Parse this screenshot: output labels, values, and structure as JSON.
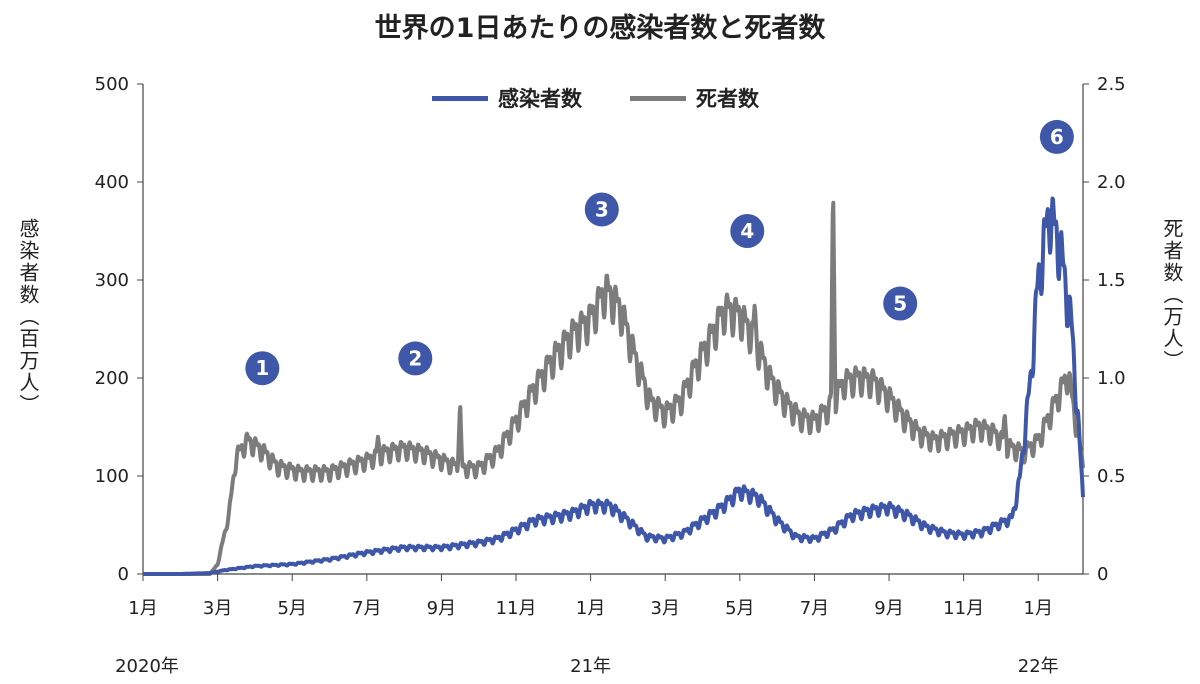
{
  "chart_data": {
    "type": "line",
    "title": "世界の1日あたりの感染者数と死者数",
    "y_left": {
      "label": "感染者数（百万人）",
      "min": 0,
      "max": 500,
      "ticks": [
        "0",
        "100",
        "200",
        "300",
        "400",
        "500"
      ]
    },
    "y_right": {
      "label": "死者数（万人）",
      "min": 0,
      "max": 2.5,
      "ticks": [
        "0",
        "0.5",
        "1.0",
        "1.5",
        "2.0",
        "2.5"
      ]
    },
    "x": {
      "min": 0,
      "max": 25.2,
      "ticks": [
        {
          "m": 0,
          "label": "1月"
        },
        {
          "m": 2,
          "label": "3月"
        },
        {
          "m": 4,
          "label": "5月"
        },
        {
          "m": 6,
          "label": "7月"
        },
        {
          "m": 8,
          "label": "9月"
        },
        {
          "m": 10,
          "label": "11月"
        },
        {
          "m": 12,
          "label": "1月"
        },
        {
          "m": 14,
          "label": "3月"
        },
        {
          "m": 16,
          "label": "5月"
        },
        {
          "m": 18,
          "label": "7月"
        },
        {
          "m": 20,
          "label": "9月"
        },
        {
          "m": 22,
          "label": "11月"
        },
        {
          "m": 24,
          "label": "1月"
        }
      ],
      "years": [
        {
          "m": 0,
          "label": "2020年"
        },
        {
          "m": 12,
          "label": "21年"
        },
        {
          "m": 24,
          "label": "22年"
        }
      ]
    },
    "legend_position": "top-center",
    "series": [
      {
        "name": "感染者数",
        "axis": "left",
        "color": "#3f57a8",
        "points": [
          [
            0,
            0
          ],
          [
            1,
            0
          ],
          [
            1.8,
            1
          ],
          [
            2.2,
            4
          ],
          [
            3,
            8
          ],
          [
            4,
            10
          ],
          [
            5,
            15
          ],
          [
            6,
            22
          ],
          [
            7,
            27
          ],
          [
            8,
            27
          ],
          [
            9,
            32
          ],
          [
            9.5,
            36
          ],
          [
            10,
            45
          ],
          [
            10.5,
            55
          ],
          [
            11,
            58
          ],
          [
            11.5,
            62
          ],
          [
            12,
            70
          ],
          [
            12.5,
            70
          ],
          [
            13,
            55
          ],
          [
            13.5,
            38
          ],
          [
            14,
            36
          ],
          [
            14.5,
            42
          ],
          [
            15,
            55
          ],
          [
            15.5,
            68
          ],
          [
            16,
            85
          ],
          [
            16.5,
            78
          ],
          [
            17,
            55
          ],
          [
            17.5,
            38
          ],
          [
            18,
            36
          ],
          [
            18.5,
            45
          ],
          [
            19,
            60
          ],
          [
            19.5,
            65
          ],
          [
            20,
            68
          ],
          [
            20.5,
            60
          ],
          [
            21,
            48
          ],
          [
            21.5,
            42
          ],
          [
            22,
            40
          ],
          [
            22.5,
            43
          ],
          [
            23,
            52
          ],
          [
            23.3,
            57
          ],
          [
            23.5,
            95
          ],
          [
            23.8,
            200
          ],
          [
            24,
            300
          ],
          [
            24.3,
            370
          ],
          [
            24.6,
            330
          ],
          [
            24.9,
            250
          ],
          [
            25.2,
            80
          ]
        ]
      },
      {
        "name": "死者数",
        "axis": "right",
        "color": "#7c7c7c",
        "points": [
          [
            0,
            0
          ],
          [
            1,
            0
          ],
          [
            1.8,
            0
          ],
          [
            2,
            0.05
          ],
          [
            2.3,
            0.3
          ],
          [
            2.5,
            0.6
          ],
          [
            2.8,
            0.68
          ],
          [
            3.2,
            0.63
          ],
          [
            3.6,
            0.55
          ],
          [
            4.2,
            0.52
          ],
          [
            5,
            0.52
          ],
          [
            5.5,
            0.55
          ],
          [
            6,
            0.58
          ],
          [
            6.5,
            0.62
          ],
          [
            7,
            0.64
          ],
          [
            7.5,
            0.62
          ],
          [
            8,
            0.58
          ],
          [
            8.5,
            0.54
          ],
          [
            9,
            0.54
          ],
          [
            9.5,
            0.62
          ],
          [
            10,
            0.78
          ],
          [
            10.5,
            0.95
          ],
          [
            11,
            1.1
          ],
          [
            11.5,
            1.22
          ],
          [
            12,
            1.3
          ],
          [
            12.4,
            1.45
          ],
          [
            12.8,
            1.35
          ],
          [
            13.2,
            1.1
          ],
          [
            13.6,
            0.88
          ],
          [
            14,
            0.82
          ],
          [
            14.4,
            0.88
          ],
          [
            14.8,
            1.05
          ],
          [
            15.2,
            1.2
          ],
          [
            15.6,
            1.35
          ],
          [
            16,
            1.32
          ],
          [
            16.4,
            1.2
          ],
          [
            16.8,
            1.0
          ],
          [
            17.2,
            0.88
          ],
          [
            17.6,
            0.8
          ],
          [
            18,
            0.78
          ],
          [
            18.4,
            0.85
          ],
          [
            18.8,
            0.98
          ],
          [
            19.2,
            1.0
          ],
          [
            19.6,
            0.98
          ],
          [
            20,
            0.9
          ],
          [
            20.4,
            0.8
          ],
          [
            20.8,
            0.72
          ],
          [
            21.2,
            0.68
          ],
          [
            21.6,
            0.7
          ],
          [
            22,
            0.72
          ],
          [
            22.4,
            0.75
          ],
          [
            22.8,
            0.72
          ],
          [
            23.2,
            0.65
          ],
          [
            23.6,
            0.62
          ],
          [
            24,
            0.68
          ],
          [
            24.4,
            0.85
          ],
          [
            24.8,
            1.02
          ],
          [
            25.2,
            0.55
          ]
        ],
        "spikes": [
          [
            6.3,
            0.7
          ],
          [
            8.5,
            0.88
          ],
          [
            16.4,
            1.38
          ],
          [
            18.5,
            2.01
          ],
          [
            23.1,
            0.82
          ]
        ]
      }
    ],
    "annotations": [
      {
        "label": "1",
        "m": 3.2,
        "y": 1.05
      },
      {
        "label": "2",
        "m": 7.3,
        "y": 1.1
      },
      {
        "label": "3",
        "m": 12.3,
        "y": 1.86
      },
      {
        "label": "4",
        "m": 16.2,
        "y": 1.75
      },
      {
        "label": "5",
        "m": 20.3,
        "y": 1.38
      },
      {
        "label": "6",
        "m": 24.5,
        "y": 2.23
      }
    ],
    "annotation_color": "#3f57a8"
  }
}
